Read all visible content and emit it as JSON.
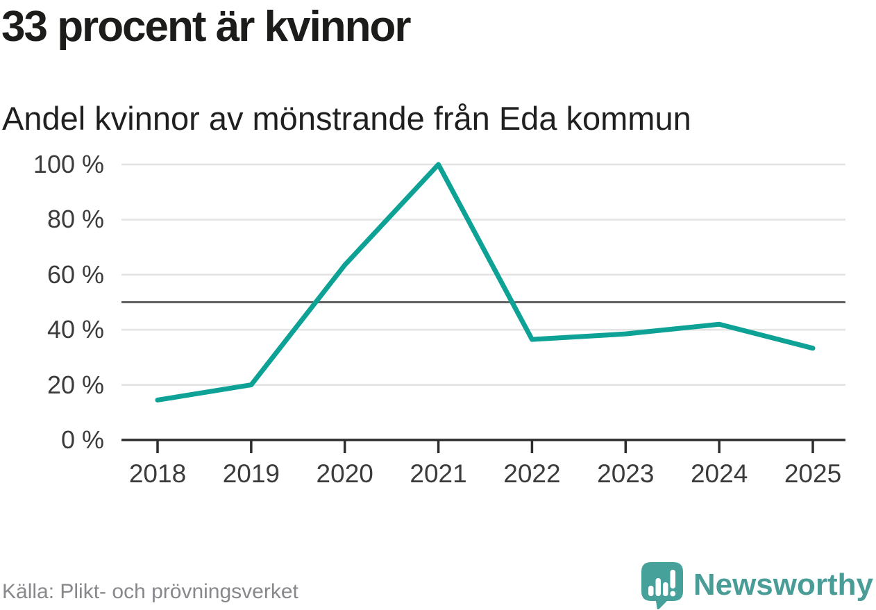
{
  "header": {
    "title": "33 procent är kvinnor",
    "subtitle": "Andel kvinnor av mönstrande från Eda kommun"
  },
  "chart_data": {
    "type": "line",
    "title": "33 procent är kvinnor",
    "subtitle": "Andel kvinnor av mönstrande från Eda kommun",
    "x": [
      2018,
      2019,
      2020,
      2021,
      2022,
      2023,
      2024,
      2025
    ],
    "series": [
      {
        "name": "Andel kvinnor av mönstrande",
        "values": [
          14.5,
          20,
          63.5,
          100,
          36.5,
          38.5,
          42,
          33.3
        ]
      }
    ],
    "xlabel": "",
    "ylabel": "",
    "ylim": [
      0,
      100
    ],
    "yticks": [
      0,
      20,
      40,
      60,
      80,
      100
    ],
    "ytick_format": "{v} %",
    "reference_line": 50,
    "grid": "horizontal",
    "legend": "none",
    "line_color": "#0da295",
    "gridline_color": "#e3e3e3",
    "reference_line_color": "#616161",
    "axis_color": "#2d2d2d",
    "tick_label_color": "#3b3b3b"
  },
  "footer": {
    "source": "Källa: Plikt- och prövningsverket",
    "brand": "Newsworthy",
    "brand_color": "#4a9c97",
    "logo_icon": "newsworthy-bubble-barchart-icon"
  }
}
